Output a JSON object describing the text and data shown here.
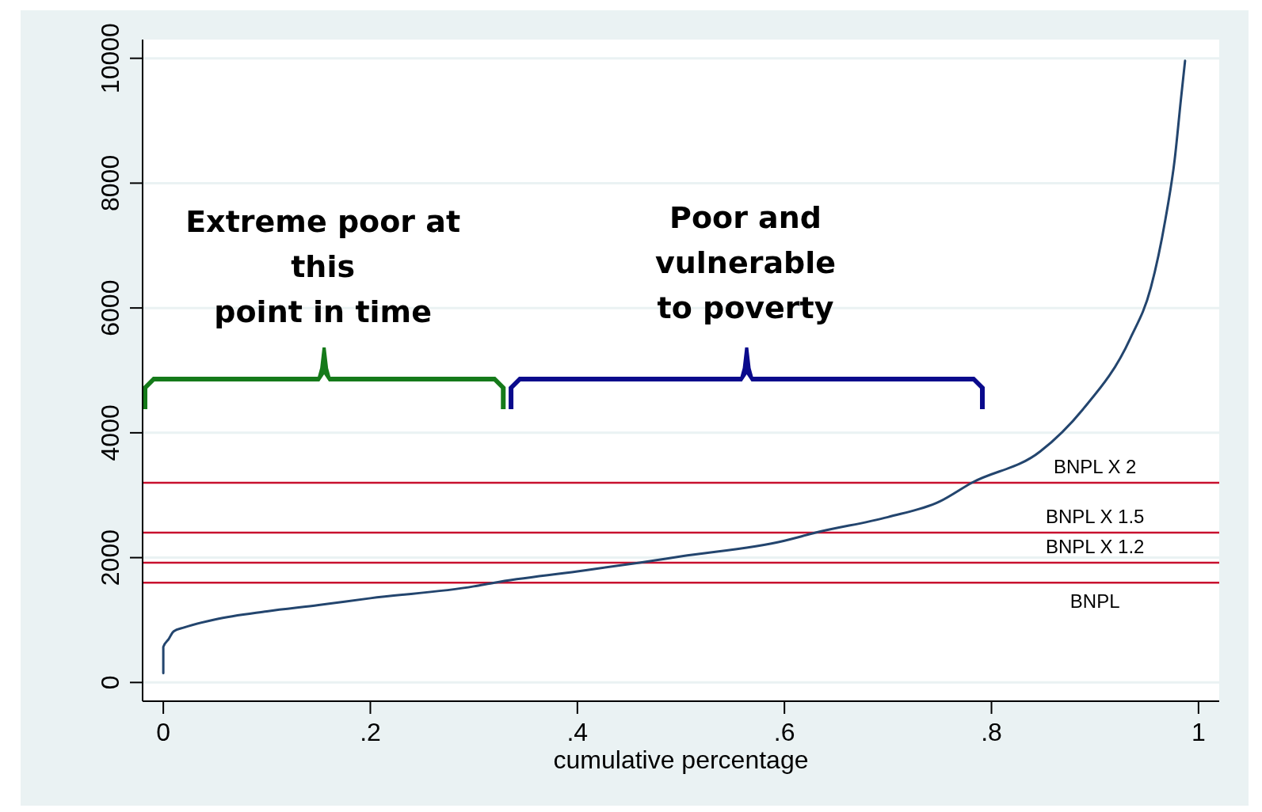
{
  "chart_data": {
    "type": "line",
    "xlabel": "cumulative percentage",
    "x": [
      0,
      0,
      0.005,
      0.01,
      0.02,
      0.05,
      0.1,
      0.15,
      0.2,
      0.3,
      0.32,
      0.4,
      0.46,
      0.5,
      0.6,
      0.63,
      0.7,
      0.75,
      0.781,
      0.847,
      0.888,
      0.934,
      0.954,
      0.968,
      0.977,
      0.983,
      0.987
    ],
    "series": [
      {
        "color": "#23456e",
        "values": [
          150,
          570,
          690,
          820,
          880,
          1010,
          1140,
          1240,
          1350,
          1540,
          1600,
          1780,
          1920,
          2020,
          2270,
          2400,
          2650,
          2900,
          3200,
          3700,
          4370,
          5510,
          6330,
          7420,
          8380,
          9340,
          9960
        ]
      }
    ],
    "xlim": [
      -0.02,
      1.02
    ],
    "ylim": [
      -300,
      10300
    ],
    "xticks": [
      0,
      {
        "value": 0.2,
        "label": ".2"
      },
      {
        "value": 0.4,
        "label": ".4"
      },
      {
        "value": 0.6,
        "label": ".6"
      },
      {
        "value": 0.8,
        "label": ".8"
      },
      1
    ],
    "yticks": [
      0,
      2000,
      4000,
      6000,
      8000,
      10000
    ],
    "grid": "y",
    "marker": "none",
    "line_style": "solid",
    "ref_lines": [
      {
        "axis": "y",
        "value": 3200,
        "label": "BNPL X 2",
        "color": "#c8102e"
      },
      {
        "axis": "y",
        "value": 2400,
        "label": "BNPL X 1.5",
        "color": "#c8102e"
      },
      {
        "axis": "y",
        "value": 1920,
        "label": "BNPL X 1.2",
        "color": "#c8102e"
      },
      {
        "axis": "y",
        "value": 1600,
        "label": "BNPL",
        "color": "#c8102e"
      }
    ],
    "annotations": [
      "Extreme poor at\nthis\npoint in time",
      "Poor and\nvulnerable\nto poverty"
    ]
  }
}
